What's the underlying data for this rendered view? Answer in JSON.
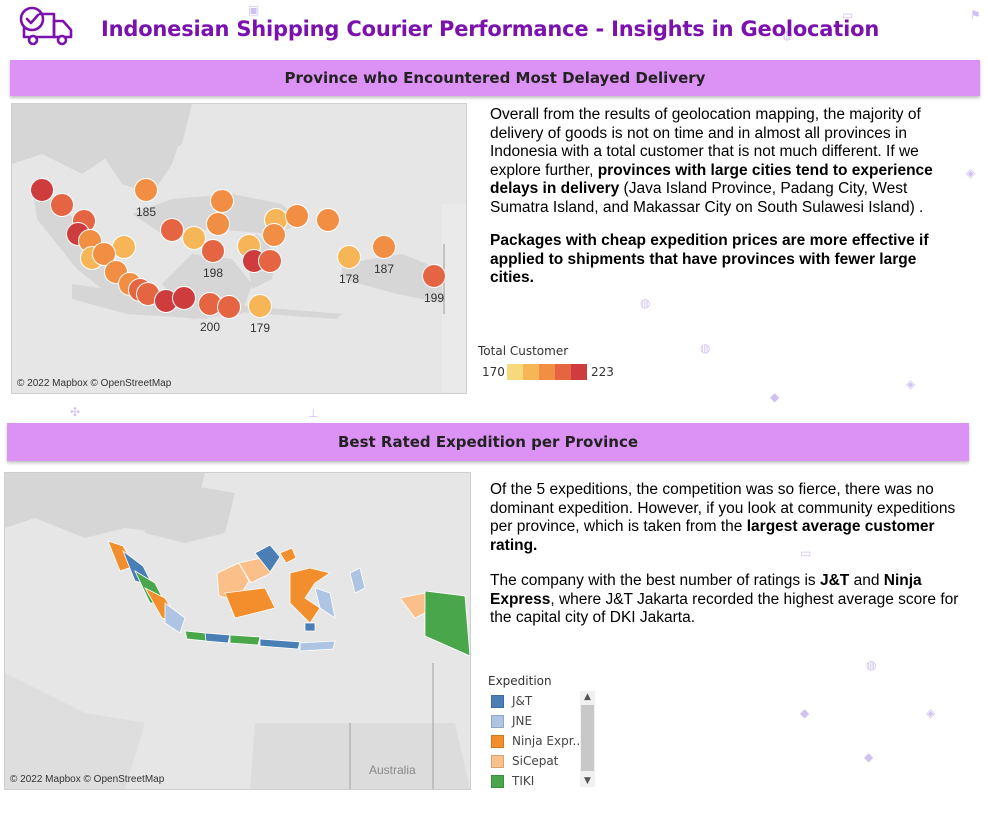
{
  "header": {
    "title": "Indonesian Shipping Courier Performance - Insights in Geolocation",
    "logo_icon": "delivery-truck-clock-icon"
  },
  "section1": {
    "banner": "Province who Encountered Most Delayed Delivery",
    "map_credit": "© 2022 Mapbox © OpenStreetMap",
    "point_labels": [
      "185",
      "198",
      "178",
      "187",
      "199",
      "200",
      "179"
    ],
    "paragraph_parts": [
      "Overall from the results of geolocation mapping, the majority of delivery of goods is not on time and in almost all provinces in Indonesia with a total customer that is not much different. If we explore further, ",
      "provinces with large cities tend to experience delays in delivery",
      " (Java Island Province, Padang City, West Sumatra Island, and Makassar City on South Sulawesi Island) ."
    ],
    "paragraph2": "Packages with cheap expedition prices are more effective if applied to shipments that have provinces with fewer large cities.",
    "legend": {
      "title": "Total Customer",
      "min": "170",
      "max": "223",
      "colors": [
        "#f5d97a",
        "#f6b657",
        "#f28e43",
        "#e56543",
        "#cf3c3d"
      ]
    }
  },
  "section2": {
    "banner": "Best Rated Expedition per Province",
    "map_credit": "© 2022 Mapbox © OpenStreetMap",
    "map_label": "Australia",
    "paragraph_parts": [
      "Of the 5 expeditions, the competition was so fierce, there was no dominant expedition. However, if you look at community expeditions per province, which is taken from the ",
      "largest average customer rating."
    ],
    "paragraph2_parts": [
      "The company with the best number of ratings is ",
      "J&T",
      " and ",
      "Ninja Express",
      ", where J&T Jakarta recorded the highest average score for the capital city of DKI Jakarta."
    ],
    "legend": {
      "title": "Expedition",
      "items": [
        {
          "label": "J&T",
          "color": "#4a7fb5"
        },
        {
          "label": "JNE",
          "color": "#aec4e3"
        },
        {
          "label": "Ninja Expr..",
          "color": "#f28e2b"
        },
        {
          "label": "SiCepat",
          "color": "#fbc08a"
        },
        {
          "label": "TIKI",
          "color": "#4aa64a"
        }
      ]
    }
  }
}
